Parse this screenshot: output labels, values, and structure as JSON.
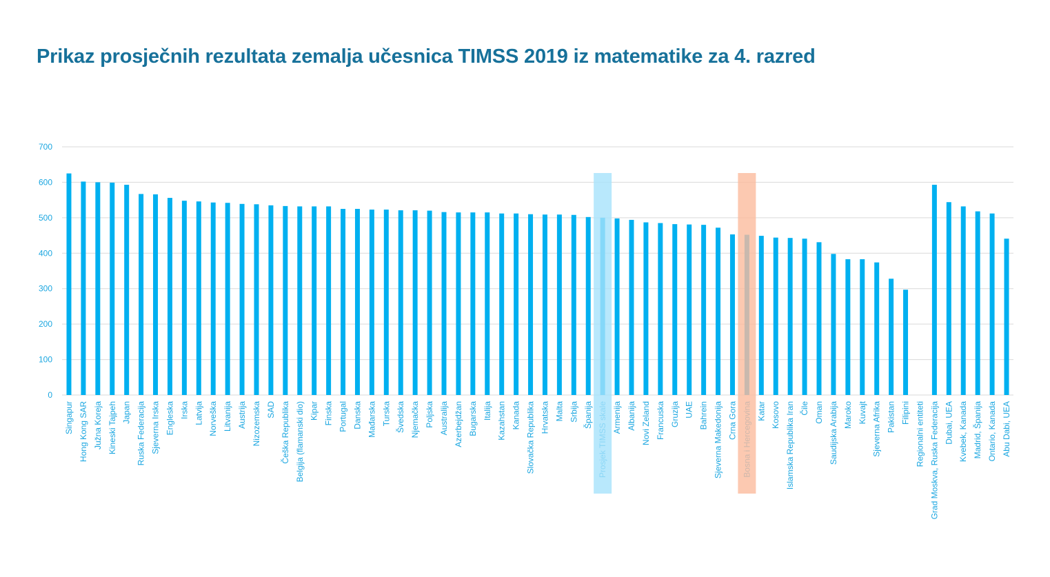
{
  "chart_data": {
    "type": "bar",
    "title": "Prikaz prosječnih rezultata zemalja učesnica TIMSS 2019 iz matematike za 4. razred",
    "xlabel": "",
    "ylabel": "",
    "ylim": [
      0,
      700
    ],
    "yticks": [
      0,
      100,
      200,
      300,
      400,
      500,
      600,
      700
    ],
    "grid": true,
    "bar_color": "#00b0f0",
    "highlights": [
      {
        "category": "Prosjek TIMSS skale",
        "color": "#a6e2fb"
      },
      {
        "category": "Bosna i Hercegovina",
        "color": "#fbbc9d"
      }
    ],
    "categories": [
      "Singapur",
      "Hong Kong SAR",
      "Južna Koreja",
      "Kineski Tajpeh",
      "Japan",
      "Ruska Federacija",
      "Sjeverna Irska",
      "Engleska",
      "Irska",
      "Latvija",
      "Norveška",
      "Litvanija",
      "Austrija",
      "Nizozemska",
      "SAD",
      "Češka Republika",
      "Belgija (flamanski dio)",
      "Kipar",
      "Finska",
      "Portugal",
      "Danska",
      "Mađarska",
      "Turska",
      "Švedska",
      "Njemačka",
      "Poljska",
      "Australija",
      "Azerbejdžan",
      "Bugarska",
      "Italija",
      "Kazahstan",
      "Kanada",
      "Slovačka Republika",
      "Hrvatska",
      "Malta",
      "Srbija",
      "Španija",
      "Prosjek TIMSS skale",
      "Armenija",
      "Albanija",
      "Novi Zeland",
      "Francuska",
      "Gruzija",
      "UAE",
      "Bahrein",
      "Sjeverna Makedonija",
      "Crna Gora",
      "Bosna i Hercegovina",
      "Katar",
      "Kosovo",
      "Islamska Republika Iran",
      "Čile",
      "Oman",
      "Saudijska Arabija",
      "Maroko",
      "Kuvajt",
      "Sjeverna Afrika",
      "Pakistan",
      "Filipini",
      "Regionalni entiteti",
      "Grad Moskva, Ruska Federacija",
      "Dubai, UEA",
      "Kvebek, Kanada",
      "Madrid, Španija",
      "Ontario, Kanada",
      "Abu Dabi, UEA"
    ],
    "values": [
      625,
      602,
      600,
      599,
      593,
      567,
      566,
      556,
      548,
      546,
      543,
      542,
      539,
      538,
      535,
      533,
      532,
      532,
      532,
      525,
      525,
      523,
      523,
      521,
      521,
      520,
      516,
      515,
      515,
      515,
      512,
      512,
      510,
      509,
      509,
      508,
      502,
      500,
      498,
      494,
      487,
      485,
      482,
      481,
      480,
      472,
      453,
      452,
      449,
      444,
      443,
      441,
      431,
      398,
      383,
      383,
      374,
      328,
      297,
      null,
      593,
      544,
      532,
      518,
      512,
      441
    ]
  }
}
